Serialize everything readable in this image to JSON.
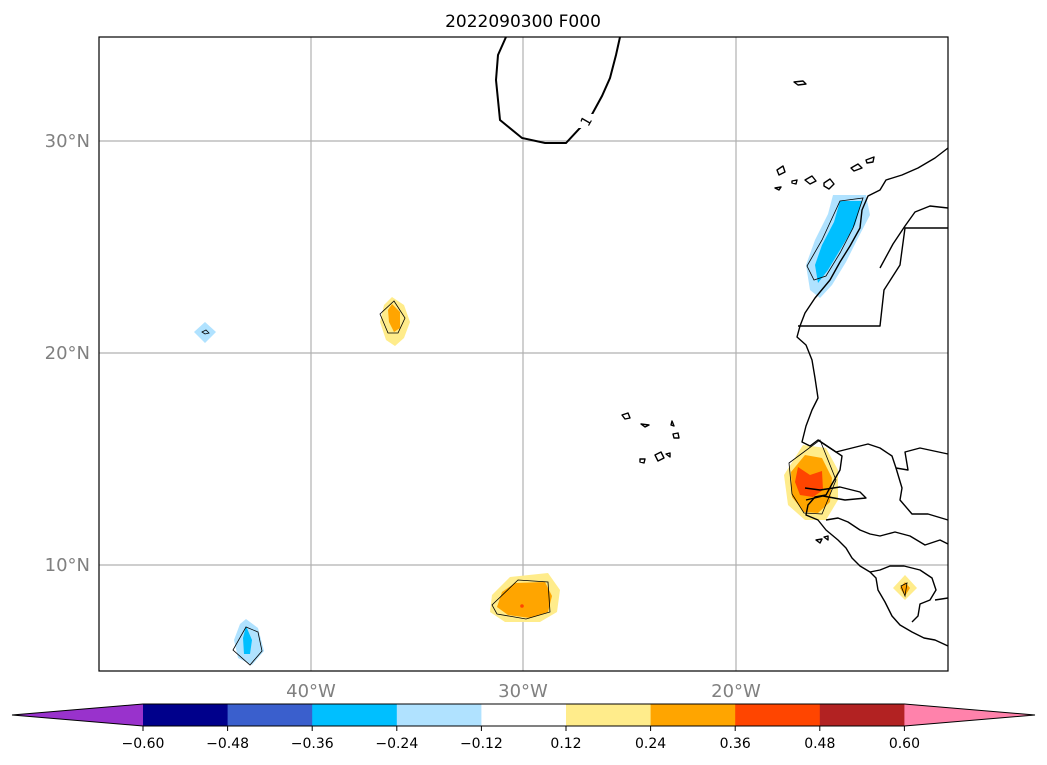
{
  "title": "2022090300 F000",
  "latitude_labels": [
    "30°N",
    "20°N",
    "10°N"
  ],
  "longitude_labels": [
    "40°W",
    "30°W",
    "20°W"
  ],
  "contour_label": "1",
  "colorbar": {
    "ticks": [
      "−0.60",
      "−0.48",
      "−0.36",
      "−0.24",
      "−0.12",
      "0.12",
      "0.24",
      "0.36",
      "0.48",
      "0.60"
    ],
    "colors": [
      "#9932cc",
      "#00008b",
      "#3a5fcd",
      "#00bfff",
      "#b0e2ff",
      "#ffffff",
      "#ffec8b",
      "#ffa500",
      "#ff4500",
      "#b22222",
      "#ff82ab"
    ]
  },
  "shading_colors": {
    "light_blue": "#b0e2ff",
    "blue": "#00bfff",
    "light_yellow": "#ffec8b",
    "orange": "#ffa500",
    "red_orange": "#ff4500"
  }
}
